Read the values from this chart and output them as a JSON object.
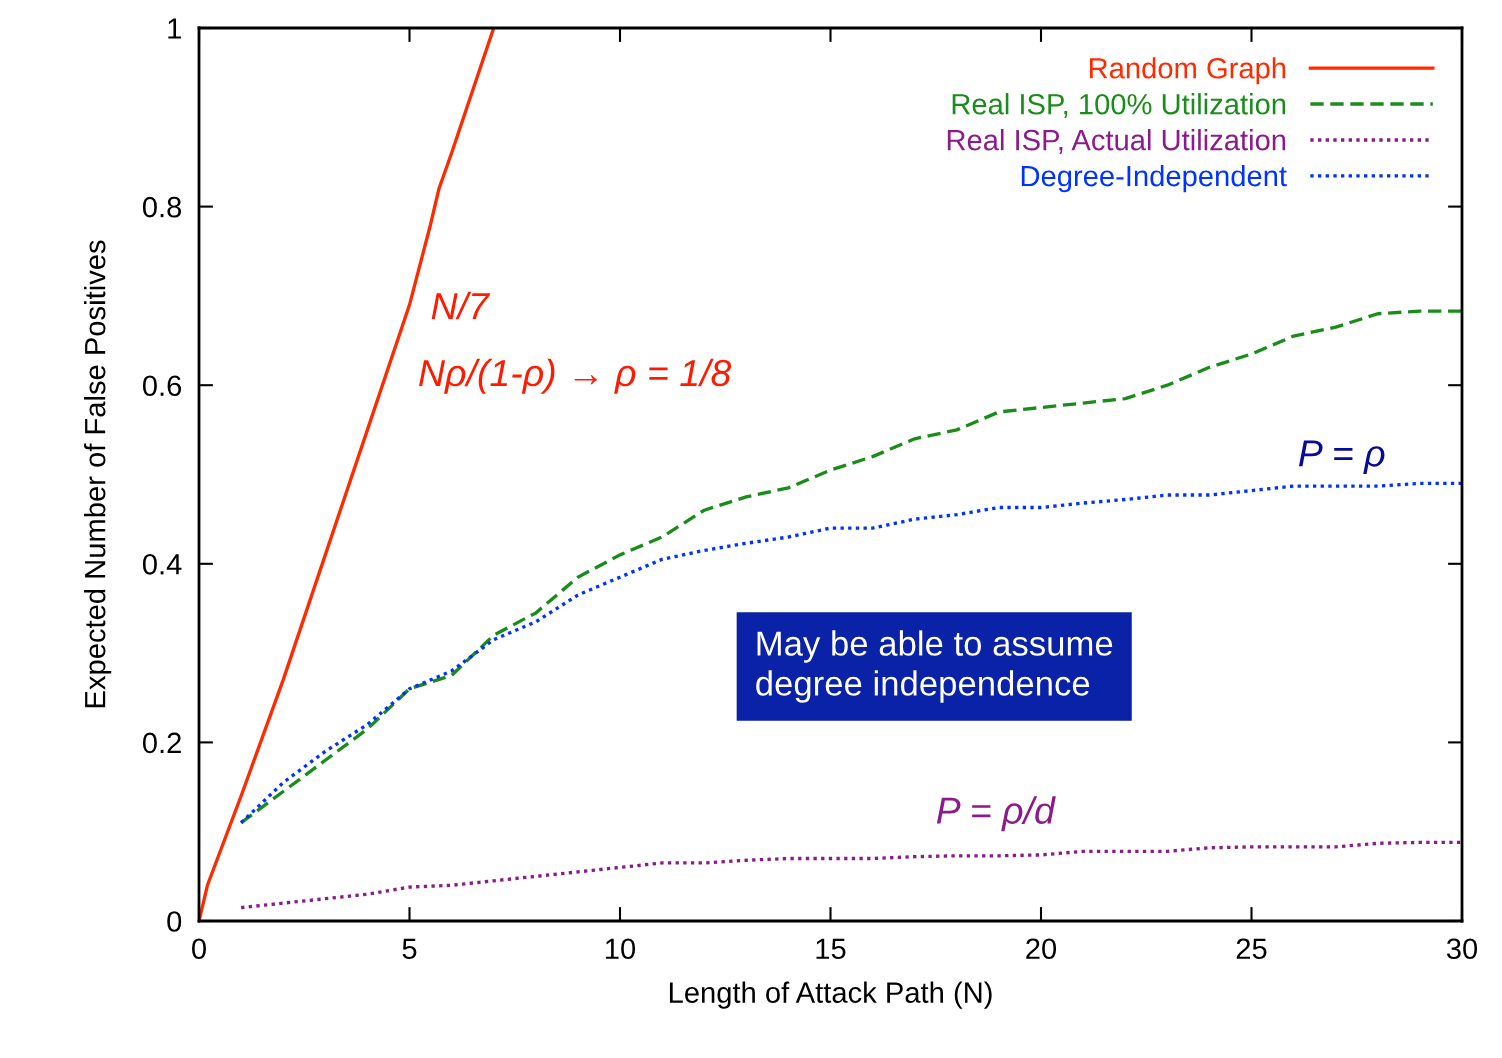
{
  "chart_data": {
    "type": "line",
    "xlabel": "Length of Attack Path (N)",
    "ylabel": "Expected Number of False Positives",
    "xlim": [
      0,
      30
    ],
    "ylim": [
      0,
      1
    ],
    "xticks": [
      0,
      5,
      10,
      15,
      20,
      25,
      30
    ],
    "yticks": [
      0,
      {
        "value": 0.2,
        "label": "0.2"
      },
      {
        "value": 0.4,
        "label": "0.4"
      },
      {
        "value": 0.6,
        "label": "0.6"
      },
      {
        "value": 0.8,
        "label": "0.8"
      },
      1
    ],
    "grid": false,
    "legend": "top right",
    "marker": "none",
    "series": [
      {
        "name": "Random Graph",
        "color": "#ff2a00",
        "line_style": "solid",
        "x": [
          0,
          0.2,
          1,
          2,
          3,
          4,
          5,
          5.5,
          5.7,
          6,
          7
        ],
        "values": [
          0,
          0.04,
          0.14,
          0.27,
          0.41,
          0.55,
          0.69,
          0.78,
          0.82,
          0.86,
          1
        ]
      },
      {
        "name": "Real ISP, 100% Utilization",
        "color": "#1a8c1a",
        "line_style": "dashed",
        "x": [
          1,
          2,
          3,
          4,
          5,
          6,
          7,
          8,
          9,
          10,
          11,
          12,
          13,
          14,
          15,
          16,
          17,
          18,
          19,
          20,
          21,
          22,
          23,
          24,
          25,
          26,
          27,
          28,
          29,
          30
        ],
        "values": [
          0.11,
          0.145,
          0.18,
          0.215,
          0.26,
          0.275,
          0.32,
          0.345,
          0.385,
          0.41,
          0.43,
          0.46,
          0.475,
          0.485,
          0.505,
          0.52,
          0.54,
          0.55,
          0.57,
          0.575,
          0.58,
          0.585,
          0.6,
          0.62,
          0.635,
          0.655,
          0.665,
          0.68,
          0.683,
          0.683
        ]
      },
      {
        "name": "Real ISP, Actual Utilization",
        "color": "#8b1a8b",
        "line_style": "dotted",
        "x": [
          1,
          2,
          3,
          4,
          5,
          6,
          7,
          8,
          9,
          10,
          11,
          12,
          13,
          14,
          15,
          16,
          17,
          18,
          19,
          20,
          21,
          22,
          23,
          24,
          25,
          26,
          27,
          28,
          29,
          30
        ],
        "values": [
          0.015,
          0.02,
          0.025,
          0.03,
          0.038,
          0.04,
          0.045,
          0.05,
          0.055,
          0.06,
          0.065,
          0.065,
          0.068,
          0.07,
          0.07,
          0.07,
          0.072,
          0.073,
          0.073,
          0.074,
          0.078,
          0.078,
          0.078,
          0.082,
          0.083,
          0.083,
          0.083,
          0.087,
          0.088,
          0.088
        ]
      },
      {
        "name": "Degree-Independent",
        "color": "#0033ff",
        "line_style": "dotted",
        "x": [
          1,
          2,
          3,
          4,
          5,
          6,
          7,
          8,
          9,
          10,
          11,
          12,
          13,
          14,
          15,
          16,
          17,
          18,
          19,
          20,
          21,
          22,
          23,
          24,
          25,
          26,
          27,
          28,
          29,
          30
        ],
        "values": [
          0.11,
          0.155,
          0.19,
          0.22,
          0.26,
          0.28,
          0.315,
          0.335,
          0.365,
          0.385,
          0.405,
          0.415,
          0.423,
          0.43,
          0.44,
          0.44,
          0.45,
          0.455,
          0.463,
          0.463,
          0.468,
          0.472,
          0.477,
          0.477,
          0.482,
          0.487,
          0.487,
          0.487,
          0.49,
          0.49
        ]
      }
    ],
    "annotations": [
      "N/7",
      "Nρ/(1-ρ) → ρ = 1/8",
      "P = ρ",
      "May be able to assume\ndegree independence",
      "P = ρ/d"
    ]
  }
}
